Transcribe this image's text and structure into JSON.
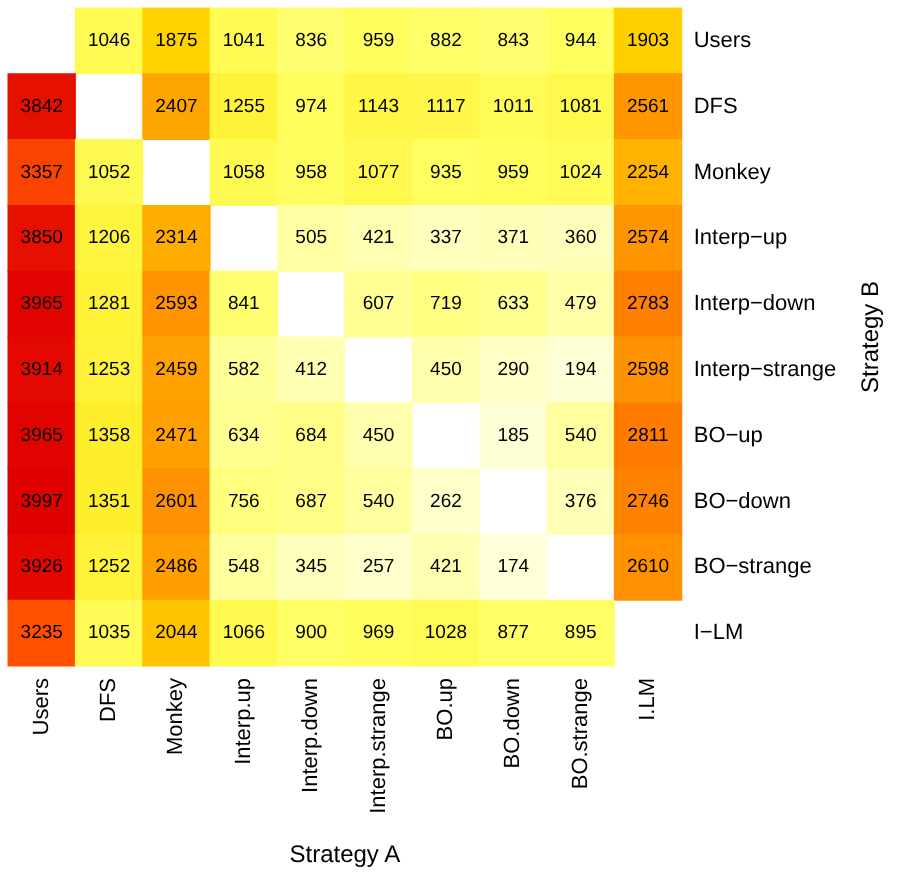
{
  "chart_data": {
    "type": "heatmap",
    "xlabel": "Strategy A",
    "ylabel": "Strategy B",
    "data_labels": true,
    "categories": [
      "Users",
      "DFS",
      "Monkey",
      "Interp.up",
      "Interp.down",
      "Interp.strange",
      "BO.up",
      "BO.down",
      "BO.strange",
      "I.LM"
    ],
    "y_categories": [
      "Users",
      "DFS",
      "Monkey",
      "Interp−up",
      "Interp−down",
      "Interp−strange",
      "BO−up",
      "BO−down",
      "BO−strange",
      "I−LM"
    ],
    "cells": [
      [
        null,
        1046,
        1875,
        1041,
        836,
        959,
        882,
        843,
        944,
        1903
      ],
      [
        3842,
        null,
        2407,
        1255,
        974,
        1143,
        1117,
        1011,
        1081,
        2561
      ],
      [
        3357,
        1052,
        null,
        1058,
        958,
        1077,
        935,
        959,
        1024,
        2254
      ],
      [
        3850,
        1206,
        2314,
        null,
        505,
        421,
        337,
        371,
        360,
        2574
      ],
      [
        3965,
        1281,
        2593,
        841,
        null,
        607,
        719,
        633,
        479,
        2783
      ],
      [
        3914,
        1253,
        2459,
        582,
        412,
        null,
        450,
        290,
        194,
        2598
      ],
      [
        3965,
        1358,
        2471,
        634,
        684,
        450,
        null,
        185,
        540,
        2811
      ],
      [
        3997,
        1351,
        2601,
        756,
        687,
        540,
        262,
        null,
        376,
        2746
      ],
      [
        3926,
        1252,
        2486,
        548,
        345,
        257,
        421,
        174,
        null,
        2610
      ],
      [
        3235,
        1035,
        2044,
        1066,
        900,
        969,
        1028,
        877,
        895,
        null
      ]
    ]
  }
}
